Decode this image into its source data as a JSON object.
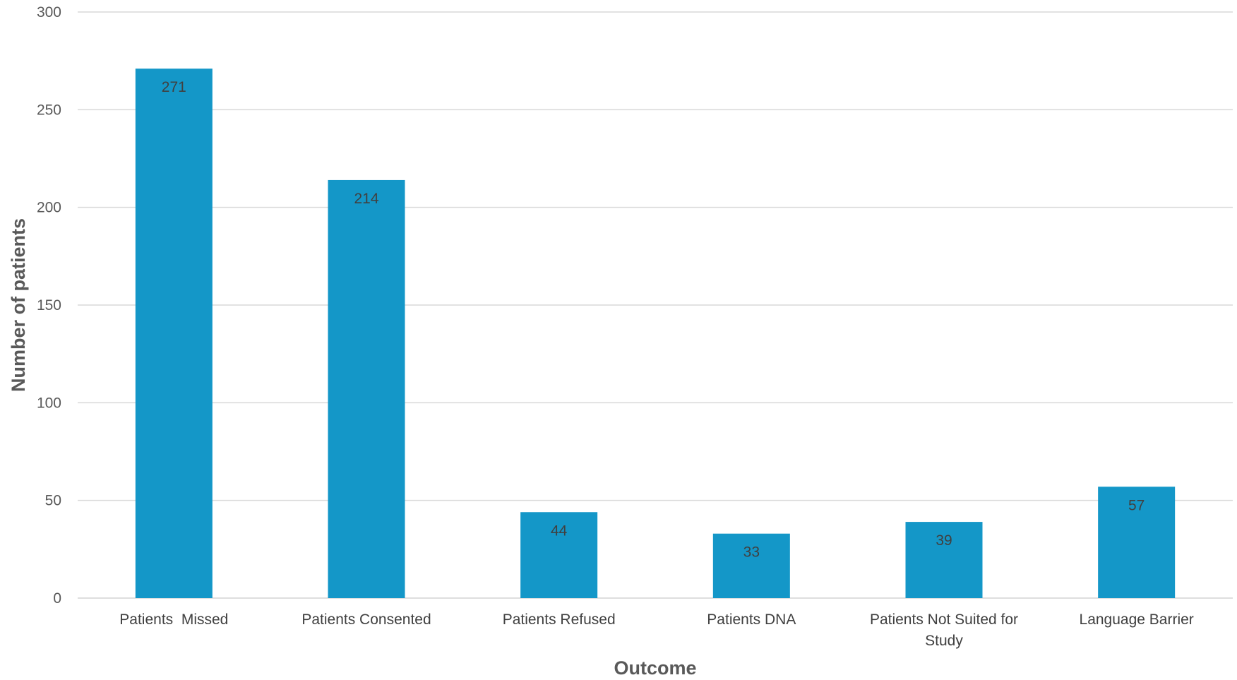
{
  "chart_data": {
    "type": "bar",
    "title": "",
    "xlabel": "Outcome",
    "ylabel": "Number of patients",
    "categories": [
      "Patients  Missed",
      "Patients Consented",
      "Patients Refused",
      "Patients DNA",
      "Patients Not Suited for Study",
      "Language Barrier"
    ],
    "category_lines": [
      [
        "Patients  Missed"
      ],
      [
        "Patients Consented"
      ],
      [
        "Patients Refused"
      ],
      [
        "Patients DNA"
      ],
      [
        "Patients Not Suited for",
        "Study"
      ],
      [
        "Language Barrier"
      ]
    ],
    "values": [
      271,
      214,
      44,
      33,
      39,
      57
    ],
    "data_labels": [
      "271",
      "214",
      "44",
      "33",
      "39",
      "57"
    ],
    "ylim": [
      0,
      300
    ],
    "yticks": [
      0,
      50,
      100,
      150,
      200,
      250,
      300
    ],
    "grid": true,
    "legend": "none",
    "bar_color": "#1497C8",
    "gridline_color": "#D9D9D9"
  }
}
